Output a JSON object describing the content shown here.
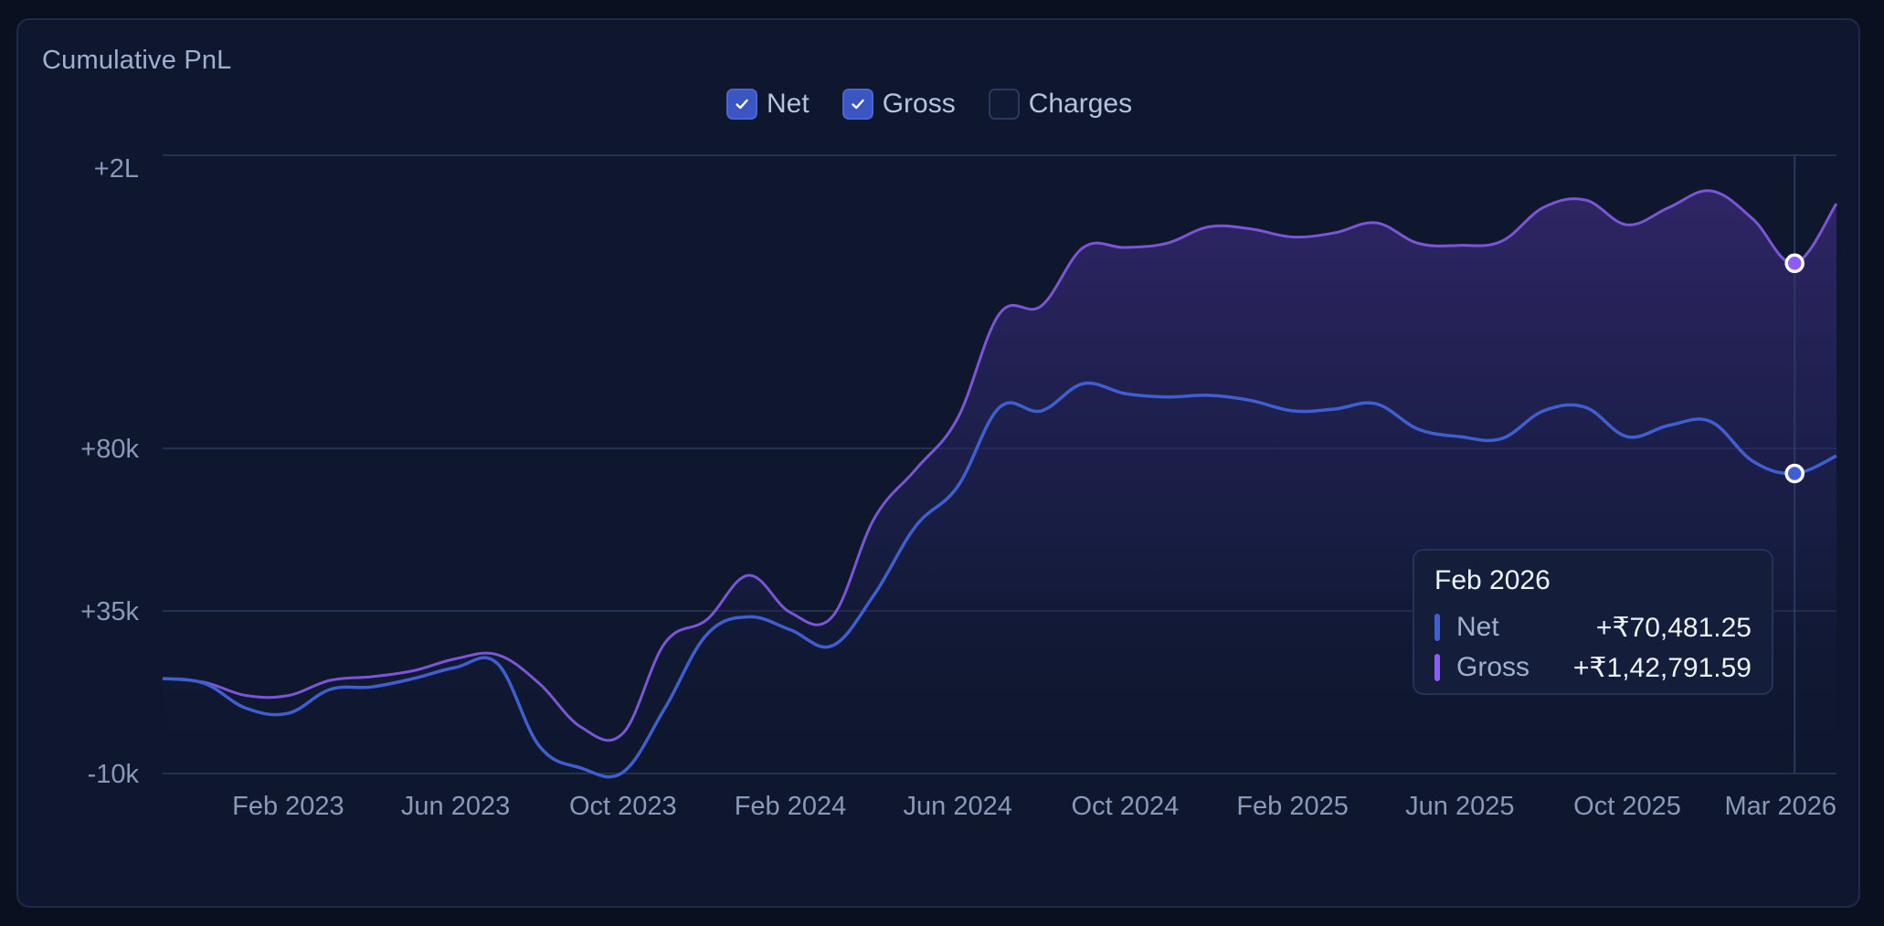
{
  "card": {
    "title": "Cumulative PnL"
  },
  "legend": [
    {
      "label": "Net",
      "checked": true
    },
    {
      "label": "Gross",
      "checked": true
    },
    {
      "label": "Charges",
      "checked": false
    }
  ],
  "colors": {
    "net": "#3f5fd0",
    "gross": "#7b55d6",
    "charges": "#2b3960",
    "tooltip_marker_net": "#3f5fd0",
    "tooltip_marker_gross": "#8b5cf6"
  },
  "tooltip": {
    "title": "Feb 2026",
    "rows": [
      {
        "name": "Net",
        "value": "+₹70,481.25"
      },
      {
        "name": "Gross",
        "value": "+₹1,42,791.59"
      }
    ]
  },
  "chart_data": {
    "type": "area",
    "y_scale": "symlog",
    "y_ticks": [
      {
        "label": "+2L",
        "value": 200000
      },
      {
        "label": "+80k",
        "value": 80000
      },
      {
        "label": "+35k",
        "value": 35000
      },
      {
        "label": "-10k",
        "value": -10000
      }
    ],
    "x_ticks": [
      "Feb 2023",
      "Jun 2023",
      "Oct 2023",
      "Feb 2024",
      "Jun 2024",
      "Oct 2024",
      "Feb 2025",
      "Jun 2025",
      "Oct 2025",
      "Mar 2026"
    ],
    "xlim": [
      "2022-11",
      "2026-03"
    ],
    "grid": true,
    "series": [
      {
        "name": "Net",
        "points": [
          [
            "2022-11",
            2000
          ],
          [
            "2022-12",
            1500
          ],
          [
            "2023-01",
            0
          ],
          [
            "2023-02",
            -200
          ],
          [
            "2023-03",
            1000
          ],
          [
            "2023-04",
            1200
          ],
          [
            "2023-05",
            2000
          ],
          [
            "2023-06",
            3500
          ],
          [
            "2023-07",
            4200
          ],
          [
            "2023-08",
            -3000
          ],
          [
            "2023-09",
            -8000
          ],
          [
            "2023-10",
            -9500
          ],
          [
            "2023-11",
            0
          ],
          [
            "2023-12",
            14000
          ],
          [
            "2024-01",
            28000
          ],
          [
            "2024-02",
            17000
          ],
          [
            "2024-03",
            9000
          ],
          [
            "2024-04",
            38000
          ],
          [
            "2024-05",
            54000
          ],
          [
            "2024-06",
            66000
          ],
          [
            "2024-07",
            91000
          ],
          [
            "2024-08",
            90000
          ],
          [
            "2024-09",
            98000
          ],
          [
            "2024-10",
            95000
          ],
          [
            "2024-11",
            94000
          ],
          [
            "2024-12",
            94500
          ],
          [
            "2025-01",
            93000
          ],
          [
            "2025-02",
            90000
          ],
          [
            "2025-03",
            90500
          ],
          [
            "2025-04",
            92000
          ],
          [
            "2025-05",
            85000
          ],
          [
            "2025-06",
            83000
          ],
          [
            "2025-07",
            82500
          ],
          [
            "2025-08",
            90000
          ],
          [
            "2025-09",
            91000
          ],
          [
            "2025-10",
            83000
          ],
          [
            "2025-11",
            86000
          ],
          [
            "2025-12",
            87000
          ],
          [
            "2026-01",
            75000
          ],
          [
            "2026-02",
            70481.25
          ],
          [
            "2026-03",
            77000
          ]
        ]
      },
      {
        "name": "Gross",
        "points": [
          [
            "2022-11",
            2000
          ],
          [
            "2022-12",
            1600
          ],
          [
            "2023-01",
            600
          ],
          [
            "2023-02",
            600
          ],
          [
            "2023-03",
            1800
          ],
          [
            "2023-04",
            2200
          ],
          [
            "2023-05",
            3000
          ],
          [
            "2023-06",
            5200
          ],
          [
            "2023-07",
            6200
          ],
          [
            "2023-08",
            1500
          ],
          [
            "2023-09",
            -1000
          ],
          [
            "2023-10",
            -1500
          ],
          [
            "2023-11",
            10000
          ],
          [
            "2023-12",
            25000
          ],
          [
            "2024-01",
            42000
          ],
          [
            "2024-02",
            33000
          ],
          [
            "2024-03",
            28000
          ],
          [
            "2024-04",
            56000
          ],
          [
            "2024-05",
            72000
          ],
          [
            "2024-06",
            88000
          ],
          [
            "2024-07",
            122000
          ],
          [
            "2024-08",
            125000
          ],
          [
            "2024-09",
            150000
          ],
          [
            "2024-10",
            150000
          ],
          [
            "2024-11",
            152000
          ],
          [
            "2024-12",
            160000
          ],
          [
            "2025-01",
            159000
          ],
          [
            "2025-02",
            155000
          ],
          [
            "2025-03",
            157000
          ],
          [
            "2025-04",
            162000
          ],
          [
            "2025-05",
            152000
          ],
          [
            "2025-06",
            151000
          ],
          [
            "2025-07",
            153000
          ],
          [
            "2025-08",
            170000
          ],
          [
            "2025-09",
            174000
          ],
          [
            "2025-10",
            161000
          ],
          [
            "2025-11",
            170000
          ],
          [
            "2025-12",
            179000
          ],
          [
            "2026-01",
            164000
          ],
          [
            "2026-02",
            142791.59
          ],
          [
            "2026-03",
            172000
          ]
        ]
      }
    ],
    "highlight": "2026-02"
  }
}
